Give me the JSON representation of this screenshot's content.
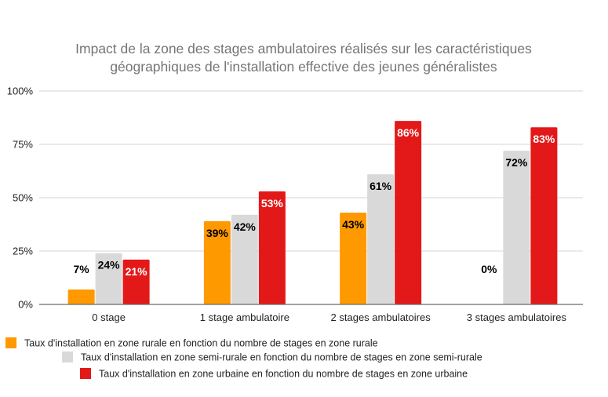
{
  "chart_data": {
    "type": "bar",
    "title_lines": [
      "Impact de la zone des stages ambulatoires réalisés sur les caractéristiques",
      "géographiques de l'installation effective des jeunes généralistes"
    ],
    "xlabel": "",
    "ylabel": "",
    "ylim": [
      0,
      100
    ],
    "yticks": [
      0,
      25,
      50,
      75,
      100
    ],
    "ytick_labels": [
      "0%",
      "25%",
      "50%",
      "75%",
      "100%"
    ],
    "grid": true,
    "legend_position": "bottom",
    "categories": [
      "0 stage",
      "1 stage ambulatoire",
      "2 stages ambulatoires",
      "3 stages ambulatoires"
    ],
    "series": [
      {
        "name": "Taux d'installation en zone rurale en fonction du nombre de stages en zone rurale",
        "color": "#FF9900",
        "label_color": "#000000",
        "values": [
          7,
          39,
          43,
          0
        ],
        "labels": [
          "7%",
          "39%",
          "43%",
          "0%"
        ]
      },
      {
        "name": "Taux d'installation en zone semi-rurale en fonction du nombre de stages en zone semi-rurale",
        "color": "#D9D9D9",
        "label_color": "#000000",
        "values": [
          24,
          42,
          61,
          72
        ],
        "labels": [
          "24%",
          "42%",
          "61%",
          "72%"
        ]
      },
      {
        "name": "Taux d'installation en zone urbaine en fonction du nombre de stages en zone urbaine",
        "color": "#E31919",
        "label_color": "#FFFFFF",
        "values": [
          21,
          53,
          86,
          83
        ],
        "labels": [
          "21%",
          "53%",
          "86%",
          "83%"
        ]
      }
    ]
  }
}
